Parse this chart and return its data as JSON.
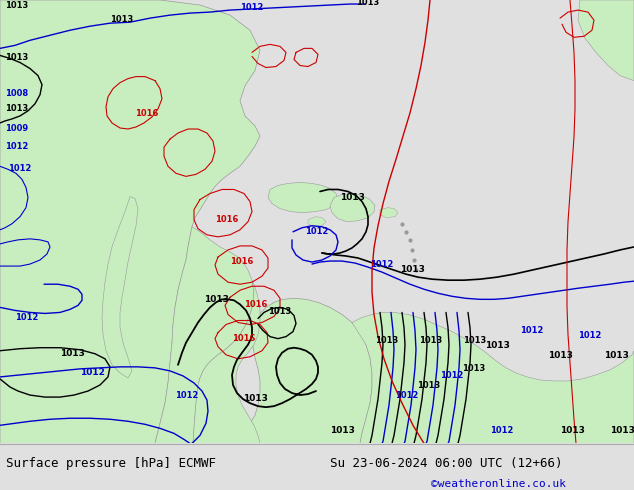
{
  "title_left": "Surface pressure [hPa] ECMWF",
  "title_right": "Su 23-06-2024 06:00 UTC (12+66)",
  "credit": "©weatheronline.co.uk",
  "bg_gray": "#e0e0e0",
  "ocean_color": "#d2d2d2",
  "land_color": "#c8eec0",
  "coast_color": "#999999",
  "footer_font_size": 9,
  "credit_color": "#0000cc",
  "black_iso": "#000000",
  "blue_iso": "#0000cc",
  "red_iso": "#cc0000"
}
